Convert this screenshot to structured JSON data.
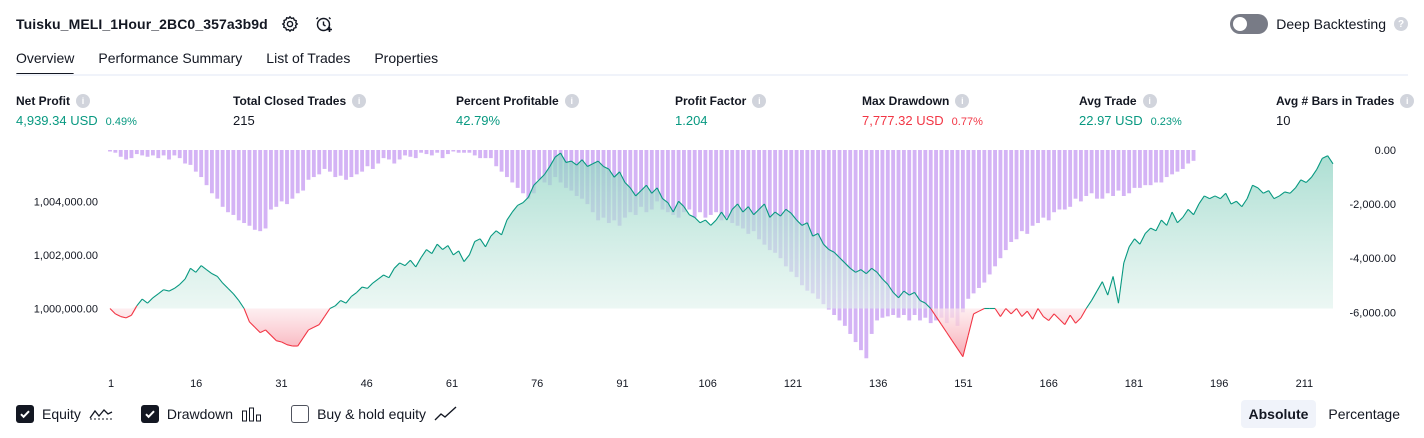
{
  "header": {
    "strategy_name": "Tuisku_MELI_1Hour_2BC0_357a3b9d",
    "settings_icon": "gear-icon",
    "alert_icon": "add-alert-icon"
  },
  "deep_backtesting": {
    "label": "Deep Backtesting",
    "enabled": false
  },
  "tabs": [
    {
      "label": "Overview",
      "active": true
    },
    {
      "label": "Performance Summary",
      "active": false
    },
    {
      "label": "List of Trades",
      "active": false
    },
    {
      "label": "Properties",
      "active": false
    }
  ],
  "metrics": [
    {
      "title": "Net Profit",
      "value": "4,939.34 USD",
      "pct": "0.49%",
      "tone": "pos"
    },
    {
      "title": "Total Closed Trades",
      "value": "215",
      "pct": "",
      "tone": "neutral"
    },
    {
      "title": "Percent Profitable",
      "value": "42.79%",
      "pct": "",
      "tone": "pos"
    },
    {
      "title": "Profit Factor",
      "value": "1.204",
      "pct": "",
      "tone": "pos"
    },
    {
      "title": "Max Drawdown",
      "value": "7,777.32 USD",
      "pct": "0.77%",
      "tone": "neg"
    },
    {
      "title": "Avg Trade",
      "value": "22.97 USD",
      "pct": "0.23%",
      "tone": "pos"
    },
    {
      "title": "Avg # Bars in Trades",
      "value": "10",
      "pct": "",
      "tone": "neutral"
    }
  ],
  "colors": {
    "positive": "#089981",
    "negative": "#f23645",
    "equity_fill_top": "#b2dfd6",
    "drawdown_bar": "#d4b3f5",
    "drawdown_bar_dark": "#b39ae0"
  },
  "chart_data": {
    "type": "line",
    "x_ticks": [
      "1",
      "16",
      "31",
      "46",
      "61",
      "76",
      "91",
      "106",
      "121",
      "136",
      "151",
      "166",
      "181",
      "196",
      "211"
    ],
    "equity_axis": {
      "ticks": [
        "1,004,000.00",
        "1,002,000.00",
        "1,000,000.00"
      ],
      "range": [
        998000,
        1005800
      ]
    },
    "drawdown_axis": {
      "ticks": [
        "0.00",
        "-2,000.00",
        "-4,000.00",
        "-6,000.00"
      ],
      "range": [
        -7800,
        0
      ]
    },
    "series": [
      {
        "kind": "equity",
        "values": [
          1000000,
          999800,
          999700,
          999650,
          999750,
          1000100,
          1000350,
          1000200,
          1000400,
          1000550,
          1000700,
          1000650,
          1000750,
          1000900,
          1001100,
          1001500,
          1001350,
          1001600,
          1001450,
          1001300,
          1001200,
          1000950,
          1000750,
          1000550,
          1000300,
          1000000,
          999500,
          999300,
          999100,
          999200,
          999000,
          998800,
          998750,
          998650,
          998600,
          998600,
          998900,
          999200,
          999300,
          999400,
          999700,
          1000000,
          1000100,
          1000300,
          1000200,
          1000450,
          1000600,
          1000800,
          1000750,
          1000950,
          1001100,
          1001250,
          1001150,
          1001500,
          1001700,
          1001600,
          1001800,
          1001550,
          1001900,
          1002200,
          1002050,
          1002400,
          1002200,
          1002350,
          1002000,
          1002150,
          1001750,
          1002000,
          1002500,
          1002600,
          1002300,
          1002700,
          1002900,
          1002750,
          1003300,
          1003600,
          1003850,
          1003950,
          1004150,
          1004600,
          1004800,
          1005000,
          1005300,
          1005650,
          1005800,
          1005450,
          1005500,
          1005350,
          1005550,
          1005300,
          1005400,
          1005500,
          1005300,
          1005200,
          1004900,
          1005100,
          1004700,
          1004500,
          1004200,
          1004400,
          1004600,
          1004300,
          1004500,
          1004100,
          1003950,
          1003600,
          1004000,
          1003800,
          1003500,
          1003400,
          1003200,
          1003300,
          1003100,
          1003300,
          1003600,
          1003300,
          1003700,
          1003900,
          1003600,
          1003800,
          1003500,
          1003700,
          1003900,
          1003400,
          1003600,
          1003450,
          1003700,
          1003550,
          1003300,
          1003100,
          1003200,
          1002700,
          1002800,
          1002400,
          1002200,
          1002100,
          1001900,
          1001700,
          1001500,
          1001350,
          1001450,
          1001300,
          1001500,
          1001350,
          1001100,
          1000900,
          1000600,
          1000400,
          1000650,
          1000500,
          1000600,
          1000300,
          1000200,
          1000000,
          999700,
          999400,
          999100,
          998800,
          998500,
          998200,
          999000,
          999800,
          999900,
          1000000,
          1000000,
          1000000,
          999700,
          1000000,
          999800,
          1000000,
          999700,
          999900,
          999600,
          1000000,
          999700,
          999550,
          999800,
          999600,
          999400,
          999750,
          999450,
          999650,
          1000000,
          1000300,
          1000650,
          1001000,
          1000500,
          1001200,
          1000200,
          1001700,
          1002300,
          1002600,
          1002400,
          1002800,
          1003000,
          1002900,
          1003300,
          1003100,
          1003600,
          1003200,
          1003400,
          1003700,
          1003500,
          1003900,
          1004200,
          1004100,
          1004200,
          1004100,
          1004300,
          1003900,
          1004000,
          1003800,
          1004100,
          1004600,
          1004500,
          1004300,
          1004400,
          1004100,
          1004200,
          1004350,
          1004300,
          1004500,
          1004800,
          1004700,
          1004900,
          1005200,
          1005600,
          1005700,
          1005400
        ]
      },
      {
        "kind": "drawdown",
        "values": [
          -50,
          -100,
          -250,
          -350,
          -300,
          -150,
          -200,
          -250,
          -200,
          -300,
          -200,
          -350,
          -200,
          -300,
          -500,
          -550,
          -800,
          -1000,
          -1300,
          -1600,
          -1800,
          -2100,
          -2300,
          -2400,
          -2600,
          -2700,
          -2800,
          -2950,
          -3000,
          -2900,
          -2200,
          -2100,
          -1900,
          -2000,
          -1800,
          -1600,
          -1500,
          -1100,
          -1000,
          -900,
          -700,
          -800,
          -1000,
          -950,
          -1100,
          -1000,
          -900,
          -800,
          -600,
          -700,
          -500,
          -300,
          -350,
          -500,
          -350,
          -200,
          -250,
          -300,
          -100,
          -150,
          -200,
          -100,
          -300,
          -150,
          -50,
          -100,
          -100,
          -100,
          -200,
          -300,
          -300,
          -300,
          -600,
          -800,
          -1000,
          -1200,
          -1400,
          -1600,
          -1800,
          -1600,
          -1100,
          -1200,
          -1300,
          -1000,
          -1200,
          -1400,
          -1500,
          -1700,
          -1800,
          -2000,
          -2300,
          -2600,
          -2500,
          -2700,
          -2600,
          -2800,
          -2500,
          -2300,
          -2400,
          -2100,
          -2300,
          -2200,
          -1900,
          -2200,
          -2300,
          -2400,
          -2500,
          -2300,
          -2200,
          -2500,
          -2300,
          -2500,
          -2400,
          -2300,
          -2600,
          -2500,
          -2700,
          -2800,
          -2900,
          -3100,
          -3000,
          -3300,
          -3500,
          -3700,
          -3800,
          -4000,
          -4300,
          -4500,
          -4700,
          -5000,
          -5200,
          -5300,
          -5500,
          -5700,
          -5900,
          -6100,
          -6300,
          -6500,
          -6800,
          -7100,
          -7400,
          -7700,
          -6800,
          -6300,
          -6200,
          -6150,
          -6100,
          -6200,
          -6100,
          -6300,
          -6100,
          -6300,
          -6200,
          -6400,
          -6300,
          -6200,
          -6400,
          -6200,
          -6500,
          -6000,
          -5500,
          -5300,
          -5100,
          -4900,
          -4600,
          -4300,
          -4000,
          -3700,
          -3400,
          -3300,
          -3000,
          -3100,
          -2800,
          -2700,
          -2500,
          -2600,
          -2300,
          -2200,
          -2200,
          -2100,
          -1800,
          -1900,
          -1700,
          -1600,
          -1800,
          -1800,
          -1600,
          -1700,
          -1500,
          -1700,
          -1600,
          -1400,
          -1400,
          -1300,
          -1300,
          -1200,
          -1200,
          -1000,
          -900,
          -800,
          -700,
          -500,
          -400
        ]
      }
    ]
  },
  "legend": [
    {
      "label": "Equity",
      "checked": true,
      "icon": "equity-line-icon"
    },
    {
      "label": "Drawdown",
      "checked": true,
      "icon": "drawdown-bars-icon"
    },
    {
      "label": "Buy & hold equity",
      "checked": false,
      "icon": "buy-hold-line-icon"
    }
  ],
  "mode": {
    "absolute_label": "Absolute",
    "percentage_label": "Percentage",
    "selected": "Absolute"
  }
}
